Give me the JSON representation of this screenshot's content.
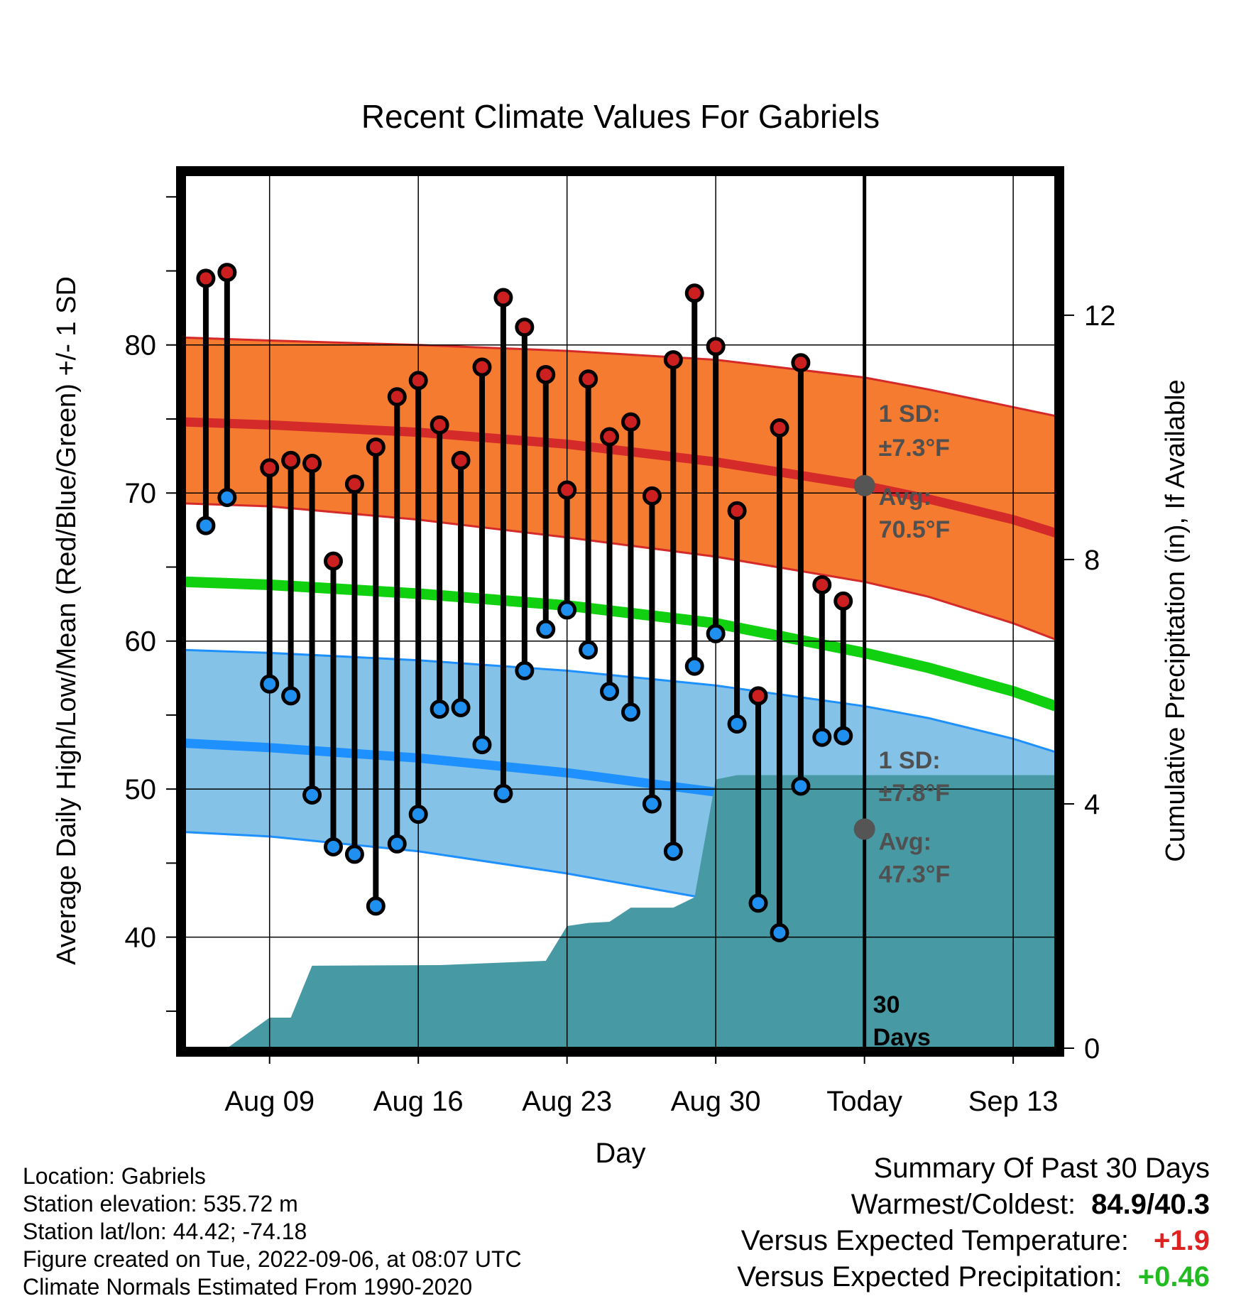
{
  "chart_data": {
    "type": "line",
    "title": "Recent Climate Values For Gabriels",
    "xlabel": "Day",
    "ylabel": "Average Daily High/Low/Mean (Red/Blue/Green) +/- 1 SD",
    "y2label": "Cumulative Precipitation (in), If Available",
    "xlim": [
      "2022-08-05",
      "2022-09-15"
    ],
    "ylim": [
      32.5,
      91.5
    ],
    "y2lim": [
      0,
      14.3
    ],
    "grid": true,
    "x_ticks": [
      {
        "date": "2022-08-09",
        "label": "Aug 09"
      },
      {
        "date": "2022-08-16",
        "label": "Aug 16"
      },
      {
        "date": "2022-08-23",
        "label": "Aug 23"
      },
      {
        "date": "2022-08-30",
        "label": "Aug 30"
      },
      {
        "date": "2022-09-06",
        "label": "Today"
      },
      {
        "date": "2022-09-13",
        "label": "Sep 13"
      }
    ],
    "y_ticks": [
      40,
      50,
      60,
      70,
      80
    ],
    "y2_ticks": [
      0,
      4,
      8,
      12
    ],
    "today": "2022-09-06",
    "window_label": "30\nDays",
    "normals": {
      "dates": [
        "2022-08-05",
        "2022-08-09",
        "2022-08-16",
        "2022-08-23",
        "2022-08-30",
        "2022-09-06",
        "2022-09-09",
        "2022-09-13",
        "2022-09-15"
      ],
      "high_mean": [
        74.8,
        74.6,
        74.1,
        73.3,
        72.1,
        70.5,
        69.6,
        68.2,
        67.3
      ],
      "high_upper": [
        80.5,
        80.3,
        80.0,
        79.6,
        79.0,
        77.8,
        77.0,
        75.8,
        75.2
      ],
      "high_lower": [
        69.3,
        69.1,
        68.2,
        67.0,
        65.7,
        64.0,
        63.0,
        61.2,
        60.1
      ],
      "mean": [
        64.0,
        63.8,
        63.2,
        62.4,
        61.2,
        59.2,
        58.2,
        56.6,
        55.6
      ],
      "low_mean": [
        53.1,
        52.8,
        52.1,
        51.1,
        49.8,
        47.3,
        46.5,
        45.0,
        44.0
      ],
      "low_upper": [
        59.4,
        59.2,
        58.7,
        58.0,
        57.0,
        55.6,
        54.8,
        53.4,
        52.5
      ],
      "low_lower": [
        47.1,
        46.8,
        45.8,
        44.3,
        42.5,
        39.7,
        38.6,
        37.3,
        36.5
      ]
    },
    "observations": {
      "dates": [
        "2022-08-06",
        "2022-08-07",
        "2022-08-09",
        "2022-08-10",
        "2022-08-11",
        "2022-08-12",
        "2022-08-13",
        "2022-08-14",
        "2022-08-15",
        "2022-08-16",
        "2022-08-17",
        "2022-08-18",
        "2022-08-19",
        "2022-08-20",
        "2022-08-21",
        "2022-08-22",
        "2022-08-23",
        "2022-08-24",
        "2022-08-25",
        "2022-08-26",
        "2022-08-27",
        "2022-08-28",
        "2022-08-29",
        "2022-08-30",
        "2022-08-31",
        "2022-09-01",
        "2022-09-02",
        "2022-09-03",
        "2022-09-04",
        "2022-09-05"
      ],
      "highs": [
        84.5,
        84.9,
        71.7,
        72.2,
        72.0,
        65.4,
        70.6,
        73.1,
        76.5,
        77.6,
        74.6,
        72.2,
        78.5,
        83.2,
        81.2,
        78.0,
        70.2,
        77.7,
        73.8,
        74.8,
        69.8,
        79.0,
        83.5,
        79.9,
        68.8,
        56.3,
        74.4,
        78.8,
        63.8,
        62.7
      ],
      "lows": [
        67.8,
        69.7,
        57.1,
        56.3,
        49.6,
        46.1,
        45.6,
        42.1,
        46.3,
        48.3,
        55.4,
        55.5,
        53.0,
        49.7,
        58.0,
        60.8,
        62.1,
        59.4,
        56.6,
        55.2,
        49.0,
        45.8,
        58.3,
        60.5,
        54.4,
        42.3,
        40.3,
        50.2,
        53.5,
        53.6
      ]
    },
    "precipitation": {
      "dates": [
        "2022-08-07",
        "2022-08-09",
        "2022-08-10",
        "2022-08-11",
        "2022-08-17",
        "2022-08-22",
        "2022-08-23",
        "2022-08-24",
        "2022-08-25",
        "2022-08-26",
        "2022-08-27",
        "2022-08-28",
        "2022-08-29",
        "2022-08-30",
        "2022-08-31",
        "2022-09-06",
        "2022-09-15"
      ],
      "values": [
        0.0,
        0.5,
        0.5,
        1.35,
        1.36,
        1.43,
        2.0,
        2.05,
        2.07,
        2.3,
        2.3,
        2.3,
        2.47,
        4.4,
        4.47,
        4.47,
        4.47
      ]
    },
    "annotations": {
      "high_sd_label": "1 SD:",
      "high_sd_value": "±7.3°F",
      "high_avg_label": "Avg:",
      "high_avg_value": "70.5°F",
      "low_sd_label": "1 SD:",
      "low_sd_value": "±7.8°F",
      "low_avg_label": "Avg:",
      "low_avg_value": "47.3°F"
    },
    "colors": {
      "high_band": "#f47b30",
      "high_line": "#d42a2a",
      "mean_line": "#10d010",
      "low_band": "#85c2e8",
      "low_line": "#1e90ff",
      "precip": "#479aa4",
      "high_marker": "#cc2020",
      "low_marker": "#2090f0"
    }
  },
  "footer": {
    "location": "Location: Gabriels",
    "elevation": "Station elevation: 535.72 m",
    "latlon": "Station lat/lon: 44.42; -74.18",
    "created": "Figure created on Tue, 2022-09-06, at 08:07 UTC",
    "normals": "Climate Normals Estimated From 1990-2020"
  },
  "summary": {
    "title": "Summary Of Past 30 Days",
    "warmest_coldest_label": "Warmest/Coldest:",
    "warmest_coldest_value": "84.9/40.3",
    "temp_label": "Versus Expected Temperature:",
    "temp_value": "+1.9",
    "temp_color": "#dd2222",
    "precip_label": "Versus Expected Precipitation:",
    "precip_value": "+0.46",
    "precip_color": "#22bb22"
  }
}
